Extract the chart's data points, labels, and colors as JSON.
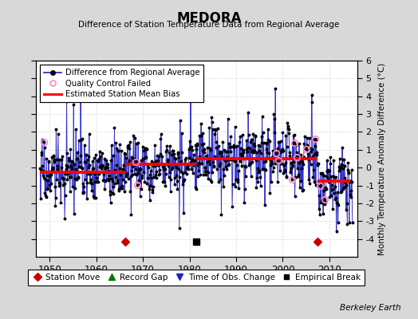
{
  "title": "MEDORA",
  "subtitle": "Difference of Station Temperature Data from Regional Average",
  "ylabel": "Monthly Temperature Anomaly Difference (°C)",
  "xlim": [
    1947,
    2016
  ],
  "ylim": [
    -5,
    6
  ],
  "yticks": [
    -4,
    -3,
    -2,
    -1,
    0,
    1,
    2,
    3,
    4,
    5,
    6
  ],
  "xticks": [
    1950,
    1960,
    1970,
    1980,
    1990,
    2000,
    2010
  ],
  "background_color": "#d8d8d8",
  "plot_bg_color": "#ffffff",
  "line_color": "#3333cc",
  "dot_color": "#000000",
  "bias_color": "#ff0000",
  "qc_color": "#ff88cc",
  "station_move_color": "#cc0000",
  "record_gap_color": "#007700",
  "obs_change_color": "#2222cc",
  "empirical_break_color": "#000000",
  "watermark": "Berkeley Earth",
  "station_moves": [
    1966.3,
    2007.5
  ],
  "empirical_breaks": [
    1981.5
  ],
  "bias_segments": [
    {
      "x": [
        1948.0,
        1966.3
      ],
      "y": [
        -0.25,
        -0.25
      ]
    },
    {
      "x": [
        1966.3,
        1981.5
      ],
      "y": [
        0.18,
        0.18
      ]
    },
    {
      "x": [
        1981.5,
        2007.5
      ],
      "y": [
        0.5,
        0.5
      ]
    },
    {
      "x": [
        2007.5,
        2014.5
      ],
      "y": [
        -0.75,
        -0.75
      ]
    }
  ],
  "qc_times": [
    1948.8,
    1968.5,
    1968.75,
    1998.5,
    1999.0,
    2002.0,
    2002.5,
    2003.0,
    2005.0,
    2007.0,
    2008.0,
    2009.0
  ],
  "bottom_y": -4.15,
  "seed": 17
}
